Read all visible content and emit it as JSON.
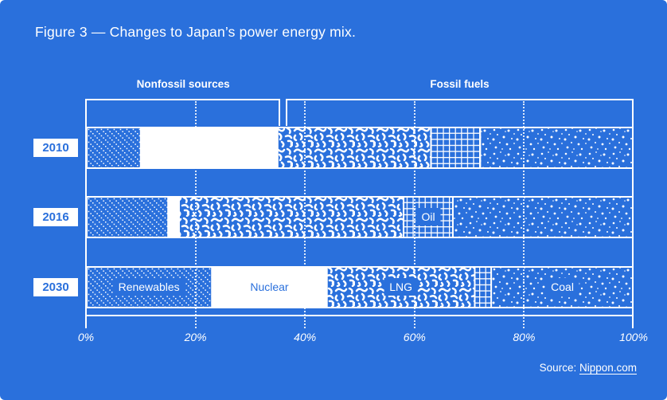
{
  "title": "Figure 3 — Changes to Japan’s power energy mix.",
  "colors": {
    "background": "#2a70dc",
    "foreground": "#ffffff"
  },
  "group_brackets": [
    {
      "label": "Nonfossil sources",
      "start_pct": 0,
      "end_pct": 35.5
    },
    {
      "label": "Fossil fuels",
      "start_pct": 36.5,
      "end_pct": 100
    }
  ],
  "chart_data": {
    "type": "bar",
    "orientation": "horizontal-stacked",
    "title": "Figure 3 — Changes to Japan’s power energy mix.",
    "unit": "%",
    "xlim": [
      0,
      100
    ],
    "grid": "dotted-vertical-at-20-40-60-80",
    "categories": [
      "2010",
      "2016",
      "2030"
    ],
    "series": [
      {
        "name": "Renewables",
        "pattern": "diagonal-dotted-hatch",
        "values": [
          10,
          15,
          23
        ]
      },
      {
        "name": "Nuclear",
        "pattern": "solid-white",
        "values": [
          25,
          2,
          21
        ]
      },
      {
        "name": "LNG",
        "pattern": "organic-squiggle",
        "values": [
          28,
          41,
          27
        ]
      },
      {
        "name": "Oil",
        "pattern": "grid",
        "values": [
          9,
          9,
          3
        ]
      },
      {
        "name": "Coal",
        "pattern": "scattered-dots",
        "values": [
          28,
          33,
          26
        ]
      }
    ],
    "x_ticks": [
      {
        "pct": 0,
        "label": "0%"
      },
      {
        "pct": 20,
        "label": "20%"
      },
      {
        "pct": 40,
        "label": "40%"
      },
      {
        "pct": 60,
        "label": "60%"
      },
      {
        "pct": 80,
        "label": "80%"
      },
      {
        "pct": 100,
        "label": "100%"
      }
    ],
    "segment_labels": [
      {
        "label": "Renewables",
        "row": "2030",
        "center_pct": 11.5,
        "variant": "chip"
      },
      {
        "label": "Nuclear",
        "row": "2030",
        "center_pct": 33.5,
        "variant": "text"
      },
      {
        "label": "LNG",
        "row": "2030",
        "center_pct": 57.5,
        "variant": "chip"
      },
      {
        "label": "Coal",
        "row": "2030",
        "center_pct": 87,
        "variant": "chip"
      },
      {
        "label": "Oil",
        "row": "2016",
        "center_pct": 62.5,
        "variant": "chip"
      }
    ]
  },
  "source": {
    "prefix": "Source: ",
    "link_text": "Nippon.com"
  }
}
